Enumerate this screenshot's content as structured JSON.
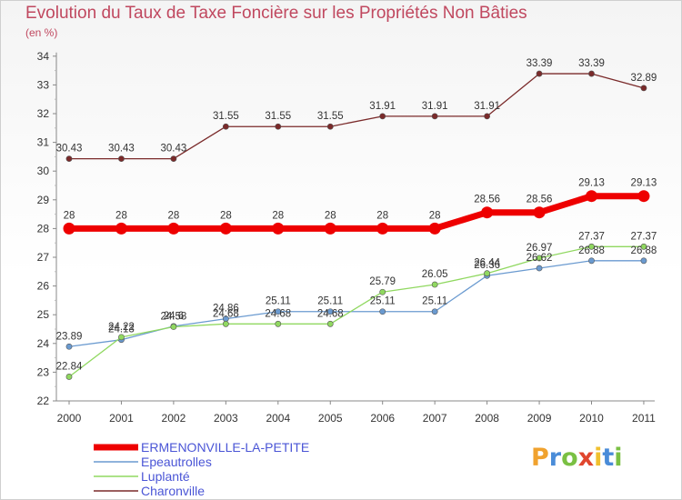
{
  "title": "Evolution du Taux de Taxe Foncière sur les Propriétés Non Bâties",
  "unit": "(en %)",
  "logo": "Proxiti",
  "chart_data": {
    "type": "line",
    "title": "Evolution du Taux de Taxe Foncière sur les Propriétés Non Bâties",
    "ylabel": "(en %)",
    "xlabel": "",
    "ylim": [
      22,
      34
    ],
    "yticks": [
      22,
      23,
      24,
      25,
      26,
      27,
      28,
      29,
      30,
      31,
      32,
      33,
      34
    ],
    "categories": [
      "2000",
      "2001",
      "2002",
      "2003",
      "2004",
      "2005",
      "2006",
      "2007",
      "2008",
      "2009",
      "2010",
      "2011"
    ],
    "grid": false,
    "legend": "bottom-left",
    "series": [
      {
        "name": "Charonville",
        "color": "#7a2a2a",
        "values": [
          30.43,
          30.43,
          30.43,
          31.55,
          31.55,
          31.55,
          31.91,
          31.91,
          31.91,
          33.39,
          33.39,
          32.89
        ],
        "labels": [
          "30.43",
          "30.43",
          "30.43",
          "31.55",
          "31.55",
          "31.55",
          "31.91",
          "31.91",
          "31.91",
          "33.39",
          "33.39",
          "32.89"
        ]
      },
      {
        "name": "ERMENONVILLE-LA-PETITE",
        "color": "#ee0000",
        "values": [
          28,
          28,
          28,
          28,
          28,
          28,
          28,
          28,
          28.56,
          28.56,
          29.13,
          29.13
        ],
        "labels": [
          "28",
          "28",
          "28",
          "28",
          "28",
          "28",
          "28",
          "28",
          "28.56",
          "28.56",
          "29.13",
          "29.13"
        ]
      },
      {
        "name": "Epeautrolles",
        "color": "#6a9ad0",
        "values": [
          23.89,
          24.13,
          24.6,
          24.86,
          25.11,
          25.11,
          25.11,
          25.11,
          26.36,
          26.62,
          26.88,
          26.88
        ],
        "labels": [
          "23.89",
          "24.13",
          "24.6",
          "24.86",
          "25.11",
          "25.11",
          "25.11",
          "25.11",
          "26.36",
          "26.62",
          "26.88",
          "26.88"
        ]
      },
      {
        "name": "Luplanté",
        "color": "#90d860",
        "values": [
          22.84,
          24.22,
          24.58,
          24.68,
          24.68,
          24.68,
          25.79,
          26.05,
          26.44,
          26.97,
          27.37,
          27.37
        ],
        "labels": [
          "22.84",
          "24.22",
          "24.58",
          "24.68",
          "24.68",
          "24.68",
          "25.79",
          "26.05",
          "26.44",
          "26.97",
          "27.37",
          "27.37"
        ]
      }
    ],
    "legend_entries": [
      "ERMENONVILLE-LA-PETITE",
      "Epeautrolles",
      "Luplanté",
      "Charonville"
    ]
  }
}
